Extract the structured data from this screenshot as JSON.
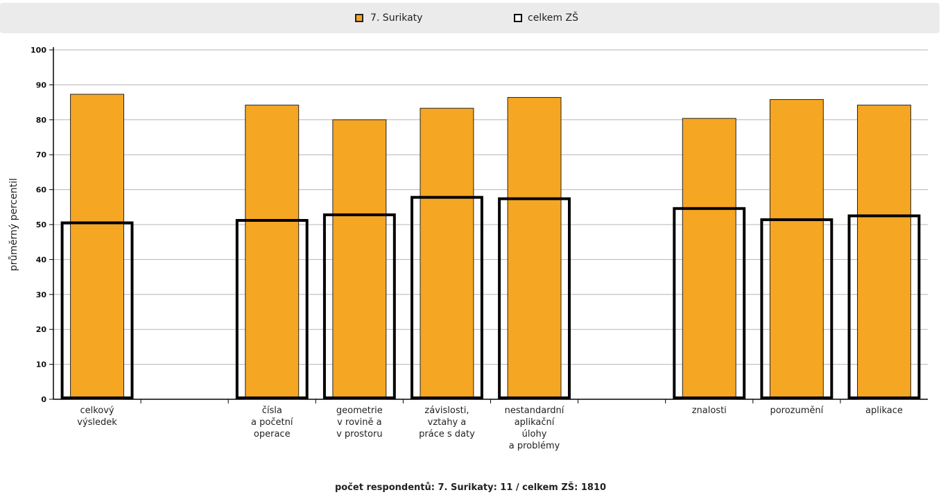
{
  "legend": {
    "series1_label": "7. Surikaty",
    "series2_label": "celkem ZŠ"
  },
  "footer": "počet respondentů: 7. Surikaty: 11 / celkem ZŠ: 1810",
  "chart_data": {
    "type": "bar",
    "ylabel": "průměrný percentil",
    "xlabel": "",
    "ylim": [
      0,
      100
    ],
    "yticks": [
      0,
      10,
      20,
      30,
      40,
      50,
      60,
      70,
      80,
      90,
      100
    ],
    "grid": true,
    "legend_position": "top",
    "categories": [
      "celkový\nvýsledek",
      "",
      "čísla\na početní\noperace",
      "geometrie\nv rovině a\nv prostoru",
      "závislosti,\nvztahy a\npráce s daty",
      "nestandardní\naplikační\núlohy\na problémy",
      "",
      "znalosti",
      "porozumění",
      "aplikace"
    ],
    "series": [
      {
        "name": "7. Surikaty",
        "style": "filled",
        "color": "#f5a623",
        "values": [
          87.3,
          null,
          84.2,
          80.0,
          83.3,
          86.4,
          null,
          80.4,
          85.8,
          84.2
        ]
      },
      {
        "name": "celkem ZŠ",
        "style": "outline",
        "color": "#000000",
        "values": [
          50.5,
          null,
          51.2,
          52.8,
          57.8,
          57.4,
          null,
          54.6,
          51.4,
          52.5
        ]
      }
    ]
  }
}
